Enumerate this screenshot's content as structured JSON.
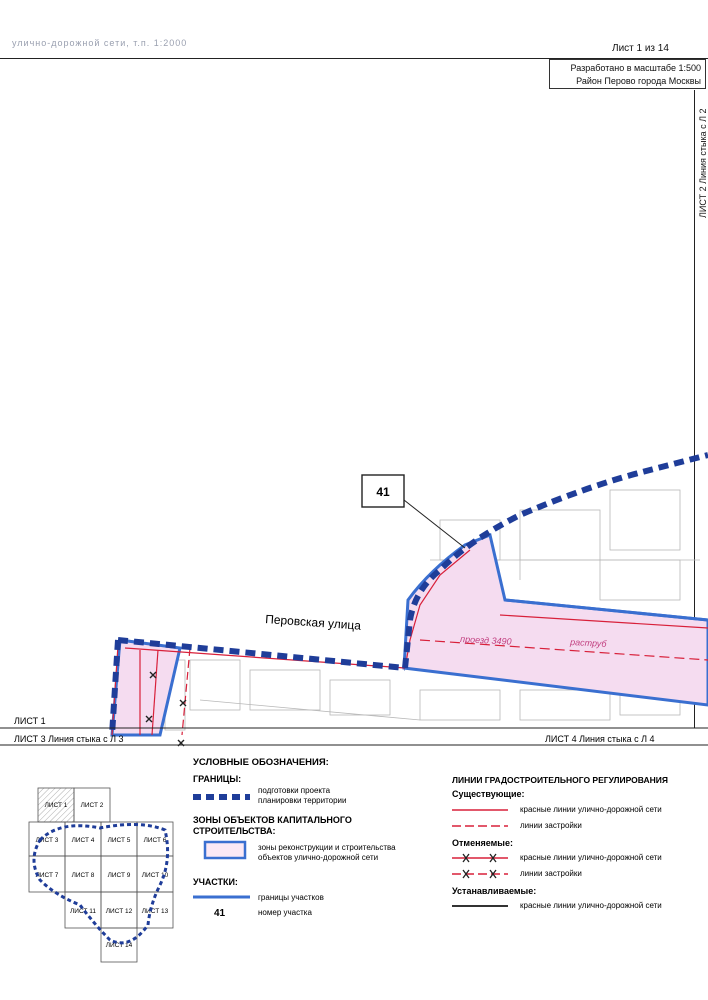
{
  "header": {
    "blurred_title": "улично-дорожной сети, т.п. 1:2000",
    "sheet_counter": "Лист 1 из 14",
    "scale_line1": "Разработано в масштабе 1:500",
    "scale_line2": "Район Перово города Москвы"
  },
  "map": {
    "right_edge_label": "ЛИСТ 2 Линия стыка с Л 2",
    "street_label": "Перовская улица",
    "plot_number": "41",
    "passage_label": "проезд 3490",
    "raструб_label": "раструб",
    "sheet_left_label": "ЛИСТ 1",
    "bottom_left_label": "ЛИСТ 3 Линия стыка с Л 3",
    "bottom_right_label": "ЛИСТ 4 Линия стыка с Л 4",
    "colors": {
      "boundary_blue": "#1f3d99",
      "zone_fill": "#f5dcf0",
      "zone_stroke": "#3a6fd0",
      "red_line": "#d8203a"
    }
  },
  "legend": {
    "title": "УСЛОВНЫЕ ОБОЗНАЧЕНИЯ:",
    "borders_heading": "ГРАНИЦЫ:",
    "border_item": [
      "подготовки проекта",
      "планировки территории"
    ],
    "zones_heading": [
      "ЗОНЫ ОБЪЕКТОВ КАПИТАЛЬНОГО",
      "СТРОИТЕЛЬСТВА:"
    ],
    "zone_item": [
      "зоны реконструкции и строительства",
      "объектов улично-дорожной сети"
    ],
    "plots_heading": "УЧАСТКИ:",
    "plot_border": "границы участков",
    "plot_number_sample": "41",
    "plot_number_text": "номер участка",
    "reg_heading": "ЛИНИИ ГРАДОСТРОИТЕЛЬНОГО РЕГУЛИРОВАНИЯ",
    "existing_heading": "Существующие:",
    "existing_red": "красные линии улично-дорожной сети",
    "existing_build": "линии застройки",
    "cancelled_heading": "Отменяемые:",
    "cancelled_red": "красные линии улично-дорожной сети",
    "cancelled_build": "линии застройки",
    "new_heading": "Устанавливаемые:",
    "new_red": "красные линии улично-дорожной сети"
  },
  "index_map": {
    "cells": [
      "ЛИСТ 1",
      "ЛИСТ 2",
      "ЛИСТ 3",
      "ЛИСТ 4",
      "ЛИСТ 5",
      "ЛИСТ 6",
      "ЛИСТ 7",
      "ЛИСТ 8",
      "ЛИСТ 9",
      "ЛИСТ 10",
      "ЛИСТ 11",
      "ЛИСТ 12",
      "ЛИСТ 13",
      "ЛИСТ 14"
    ]
  }
}
